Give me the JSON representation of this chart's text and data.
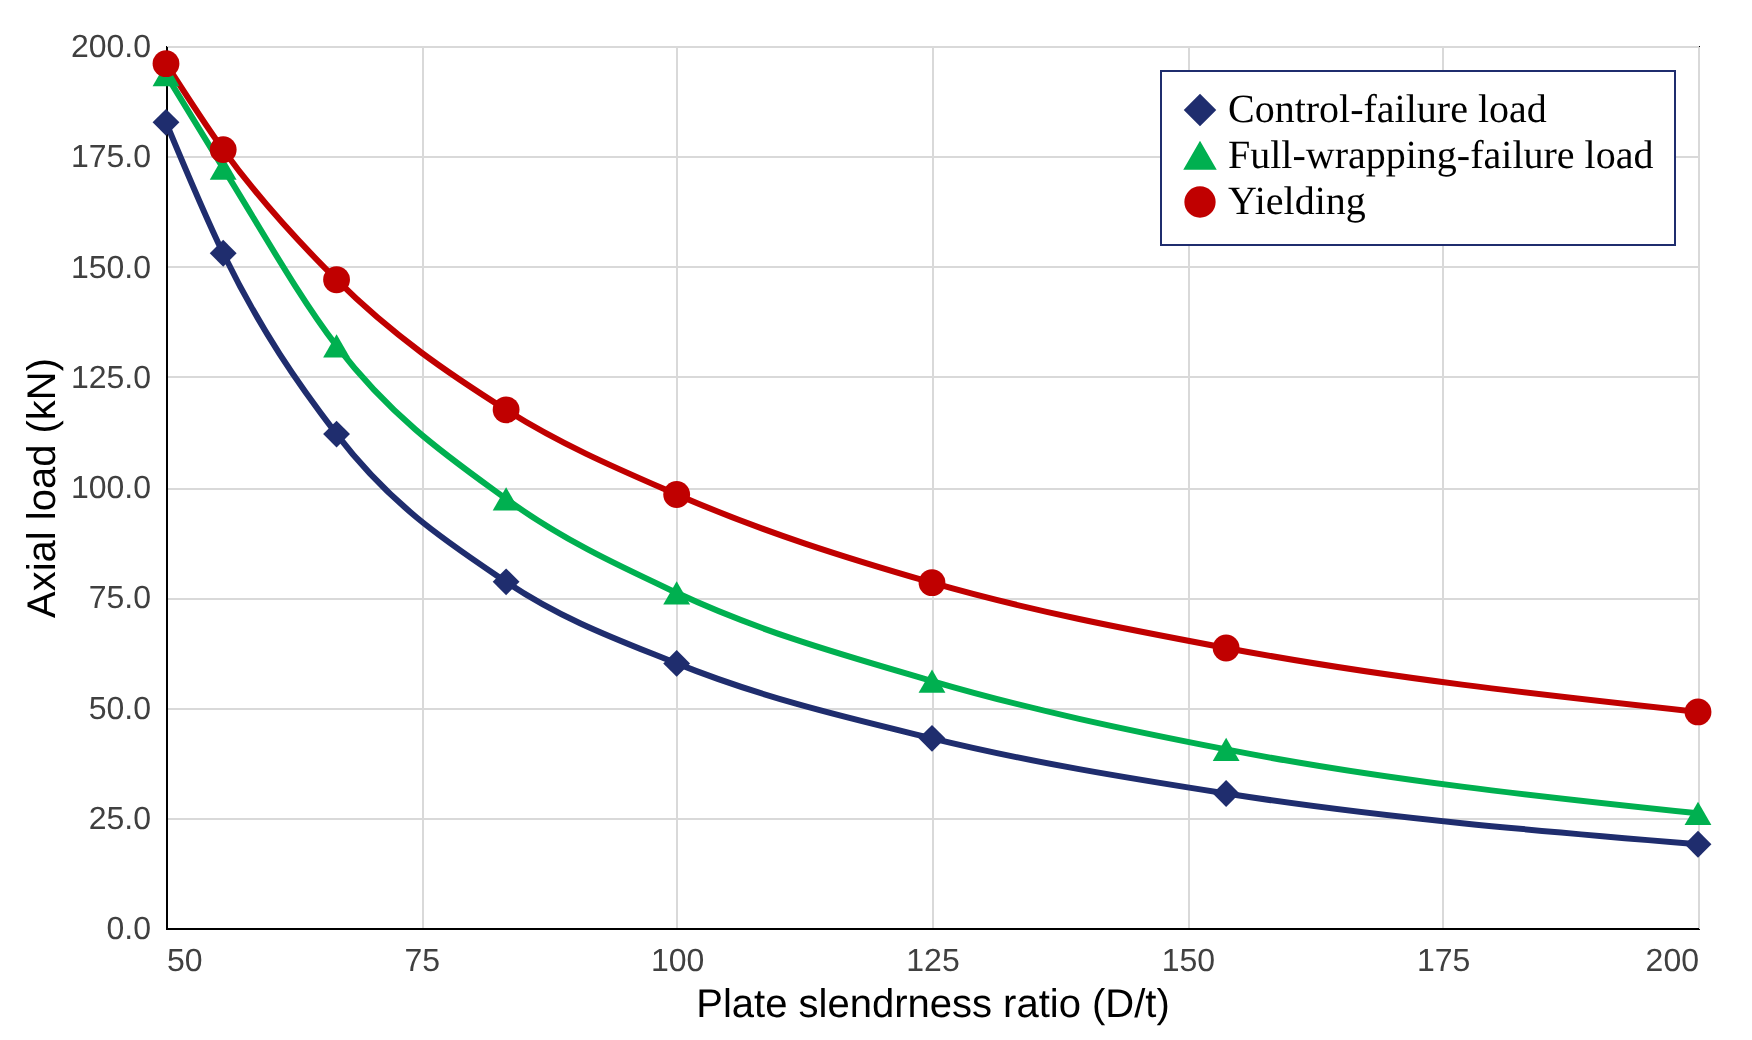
{
  "chart_data": {
    "type": "line",
    "xlabel": "Plate slendrness ratio (D/t)",
    "ylabel": "Axial load (kN)",
    "x": [
      50,
      55.6,
      66.7,
      83.3,
      100,
      125,
      153.8,
      200
    ],
    "series": [
      {
        "name": "Control-failure load",
        "color": "#1f2d6e",
        "marker": "diamond",
        "values": [
          182.7,
          153,
          112,
          78.5,
          60,
          43,
          30.5,
          19
        ]
      },
      {
        "name": "Full-wrapping-failure load",
        "color": "#00b050",
        "marker": "triangle",
        "values": [
          193.5,
          172.3,
          132,
          97.3,
          76,
          56,
          40.5,
          26
        ]
      },
      {
        "name": "Yielding",
        "color": "#c00000",
        "marker": "circle",
        "values": [
          196,
          176.5,
          147,
          117.5,
          98.3,
          78.3,
          63.5,
          49
        ]
      }
    ],
    "xlim": [
      50,
      200
    ],
    "xticks": [
      50,
      75,
      100,
      125,
      150,
      175,
      200
    ],
    "ylim": [
      0,
      200
    ],
    "yticks": [
      {
        "value": 0,
        "label": "0.0"
      },
      {
        "value": 25,
        "label": "25.0"
      },
      {
        "value": 50,
        "label": "50.0"
      },
      {
        "value": 75,
        "label": "75.0"
      },
      {
        "value": 100,
        "label": "100.0"
      },
      {
        "value": 125,
        "label": "125.0"
      },
      {
        "value": 150,
        "label": "150.0"
      },
      {
        "value": 175,
        "label": "175.0"
      },
      {
        "value": 200,
        "label": "200.0"
      }
    ],
    "grid": true,
    "legend": "top right",
    "line_style": "solid"
  }
}
